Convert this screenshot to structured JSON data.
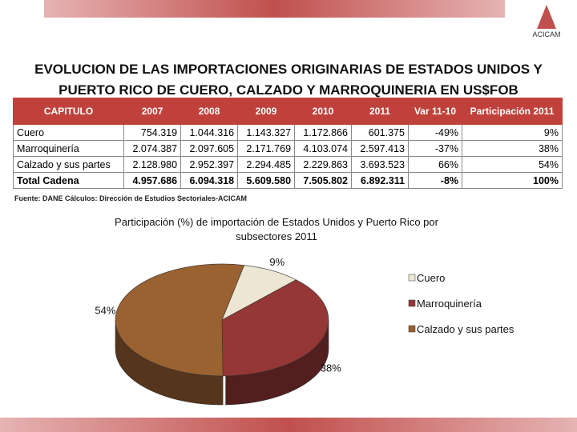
{
  "header": {
    "title": "EVOLUCION DE LAS IMPORTACIONES ORIGINARIAS DE ESTADOS UNIDOS Y PUERTO RICO DE CUERO, CALZADO Y MARROQUINERIA EN US$FOB",
    "logo": "ACICAM"
  },
  "table": {
    "columns": [
      "CAPITULO",
      "2007",
      "2008",
      "2009",
      "2010",
      "2011",
      "Var 11-10",
      "Participación 2011"
    ],
    "rows": [
      [
        "Cuero",
        "754.319",
        "1.044.316",
        "1.143.327",
        "1.172.866",
        "601.375",
        "-49%",
        "9%"
      ],
      [
        "Marroquinería",
        "2.074.387",
        "2.097.605",
        "2.171.769",
        "4.103.074",
        "2.597.413",
        "-37%",
        "38%"
      ],
      [
        "Calzado y sus partes",
        "2.128.980",
        "2.952.397",
        "2.294.485",
        "2.229.863",
        "3.693.523",
        "66%",
        "54%"
      ],
      [
        "Total Cadena",
        "4.957.686",
        "6.094.318",
        "5.609.580",
        "7.505.802",
        "6.892.311",
        "-8%",
        "100%"
      ]
    ]
  },
  "source": "Fuente: DANE Cálculos: Dirección de Estudios Sectoriales-ACICAM",
  "chart_data": {
    "type": "pie",
    "title": "Participación (%) de importación de Estados Unidos y Puerto Rico por subsectores 2011",
    "categories": [
      "Cuero",
      "Marroquinería",
      "Calzado y sus partes"
    ],
    "values": [
      9,
      38,
      54
    ],
    "value_labels": [
      "9%",
      "38%",
      "54%"
    ],
    "colors": [
      "#ece6d3",
      "#953737",
      "#9a6131"
    ]
  }
}
